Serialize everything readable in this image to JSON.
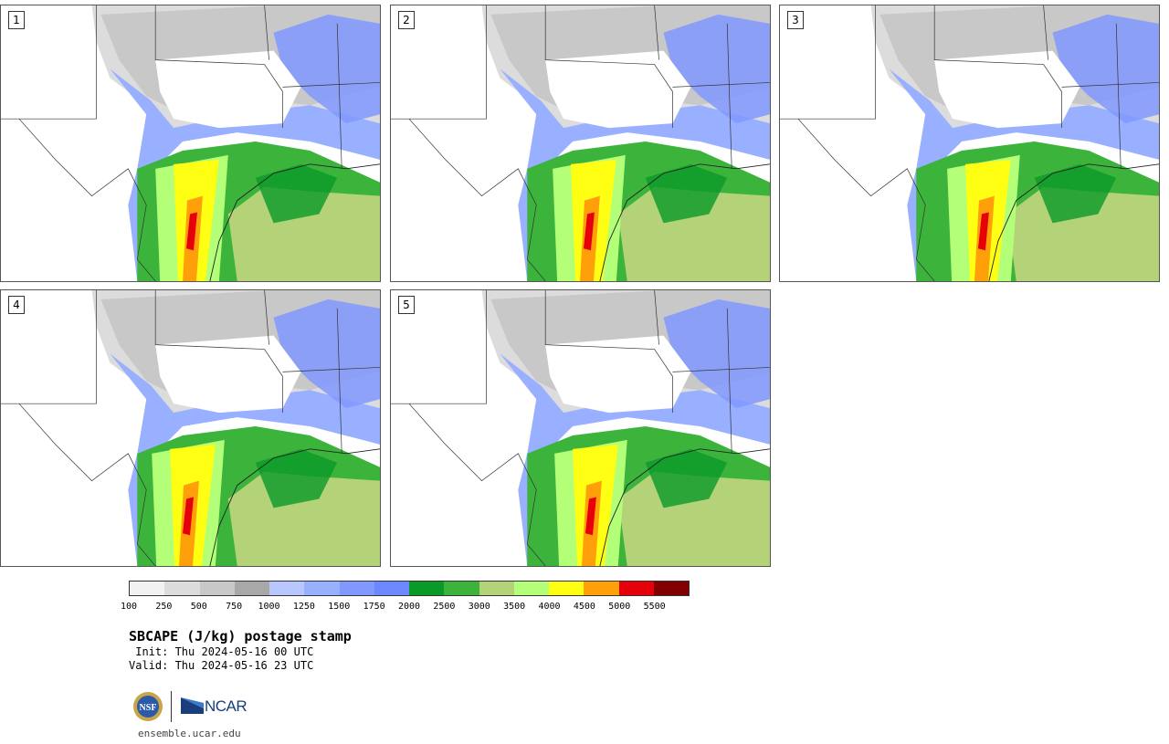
{
  "panels": [
    {
      "label": "1"
    },
    {
      "label": "2"
    },
    {
      "label": "3"
    },
    {
      "label": "4"
    },
    {
      "label": "5"
    }
  ],
  "colorbar": {
    "colors": [
      "#f2f2f2",
      "#dcdcdc",
      "#c8c8c8",
      "#a8a8a8",
      "#b8c8ff",
      "#98b0ff",
      "#8098ff",
      "#6c88ff",
      "#0a9a28",
      "#3cb43c",
      "#b4d278",
      "#b4ff78",
      "#ffff14",
      "#ffa00a",
      "#e6000a",
      "#820000"
    ],
    "ticks": [
      "100",
      "250",
      "500",
      "750",
      "1000",
      "1250",
      "1500",
      "1750",
      "2000",
      "2500",
      "3000",
      "3500",
      "4000",
      "4500",
      "5000",
      "5500"
    ]
  },
  "title": "SBCAPE (J/kg) postage stamp",
  "init": " Init: Thu 2024-05-16 00 UTC",
  "valid": "Valid: Thu 2024-05-16 23 UTC",
  "logo": {
    "nsf": "NSF",
    "ncar": "NCAR"
  },
  "site": "ensemble.ucar.edu"
}
